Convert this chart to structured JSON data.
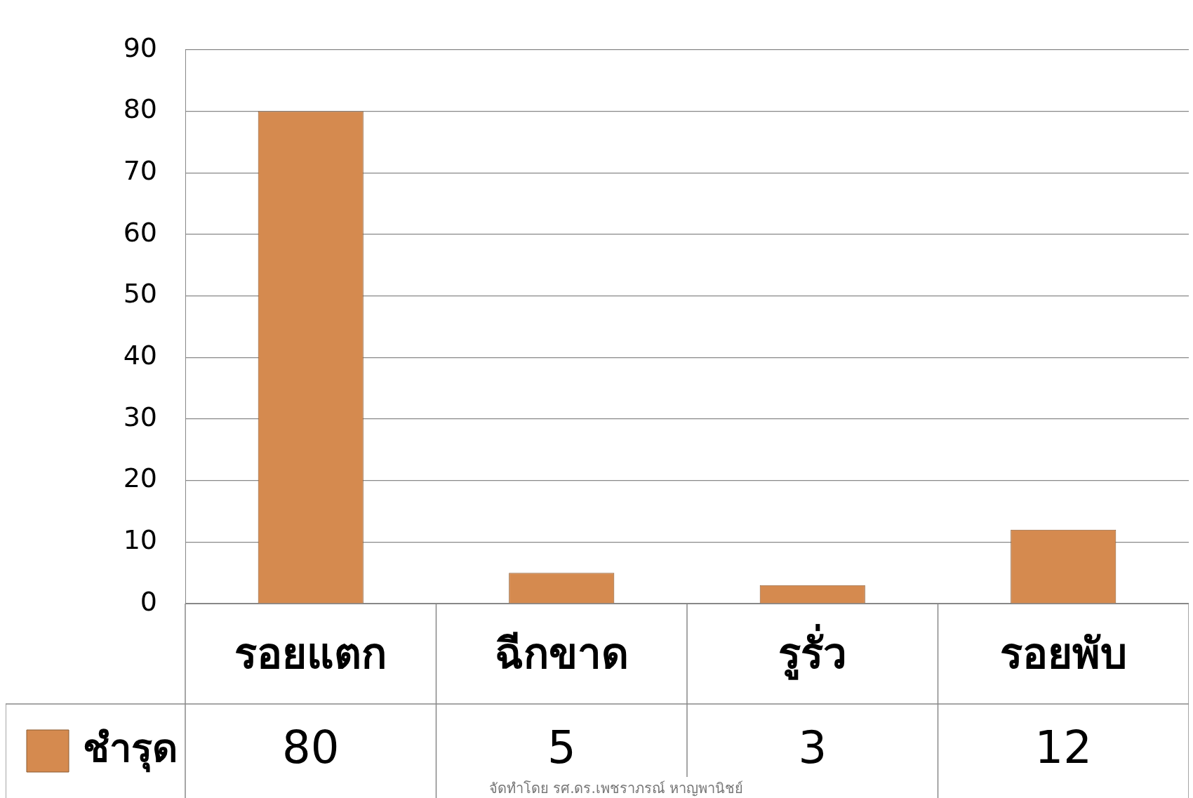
{
  "chart_data": {
    "type": "bar",
    "categories": [
      "รอยแตก",
      "ฉีกขาด",
      "รูรั่ว",
      "รอยพับ"
    ],
    "series": [
      {
        "name": "ชำรุด",
        "color": "#d58a4f",
        "values": [
          80,
          5,
          3,
          12
        ]
      }
    ],
    "ylim": [
      0,
      90
    ],
    "yticks": [
      0,
      10,
      20,
      30,
      40,
      50,
      60,
      70,
      80,
      90
    ],
    "grid": "y",
    "legend": "bottom",
    "data_labels": true,
    "annotations": [
      "จัดทำโดย รศ.ดร.เพชราภรณ์ หาญพานิชย์"
    ]
  }
}
